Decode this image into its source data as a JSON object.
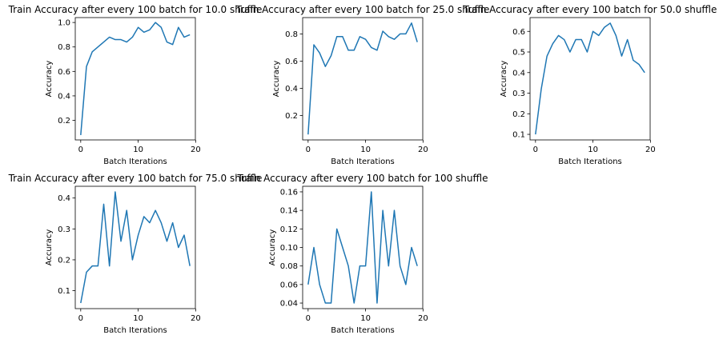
{
  "figure": {
    "line_color": "#1f77b4"
  },
  "chart_data": [
    {
      "type": "line",
      "title": "Train Accuracy after every 100 batch for 10.0 shuffle",
      "xlabel": "Batch Iterations",
      "ylabel": "Accuracy",
      "xlim": [
        -0.95,
        19.95
      ],
      "ylim": [
        0.04,
        1.04
      ],
      "xticks": [
        0,
        10,
        20
      ],
      "yticks": [
        0.2,
        0.4,
        0.6,
        0.8,
        1.0
      ],
      "ytick_labels": [
        "0.2",
        "0.4",
        "0.6",
        "0.8",
        "1.0"
      ],
      "series": [
        {
          "x": [
            0,
            1,
            2,
            3,
            4,
            5,
            6,
            7,
            8,
            9,
            10,
            11,
            12,
            13,
            14,
            15,
            16,
            17,
            18,
            19
          ],
          "y": [
            0.08,
            0.64,
            0.76,
            0.8,
            0.84,
            0.88,
            0.86,
            0.86,
            0.84,
            0.88,
            0.96,
            0.92,
            0.94,
            1.0,
            0.96,
            0.84,
            0.82,
            0.96,
            0.88,
            0.9
          ]
        }
      ]
    },
    {
      "type": "line",
      "title": "Train Accuracy after every 100 batch for 25.0 shuffle",
      "xlabel": "Batch Iterations",
      "ylabel": "Accuracy",
      "xlim": [
        -0.95,
        19.95
      ],
      "ylim": [
        0.02,
        0.92
      ],
      "xticks": [
        0,
        10,
        20
      ],
      "yticks": [
        0.2,
        0.4,
        0.6,
        0.8
      ],
      "ytick_labels": [
        "0.2",
        "0.4",
        "0.6",
        "0.8"
      ],
      "series": [
        {
          "x": [
            0,
            1,
            2,
            3,
            4,
            5,
            6,
            7,
            8,
            9,
            10,
            11,
            12,
            13,
            14,
            15,
            16,
            17,
            18,
            19
          ],
          "y": [
            0.06,
            0.72,
            0.66,
            0.56,
            0.64,
            0.78,
            0.78,
            0.68,
            0.68,
            0.78,
            0.76,
            0.7,
            0.68,
            0.82,
            0.78,
            0.76,
            0.8,
            0.8,
            0.88,
            0.74
          ]
        }
      ]
    },
    {
      "type": "line",
      "title": "Train Accuracy after every 100 batch for 50.0 shuffle",
      "xlabel": "Batch Iterations",
      "ylabel": "Accuracy",
      "xlim": [
        -0.95,
        19.95
      ],
      "ylim": [
        0.073,
        0.667
      ],
      "xticks": [
        0,
        10,
        20
      ],
      "yticks": [
        0.1,
        0.2,
        0.3,
        0.4,
        0.5,
        0.6
      ],
      "ytick_labels": [
        "0.1",
        "0.2",
        "0.3",
        "0.4",
        "0.5",
        "0.6"
      ],
      "series": [
        {
          "x": [
            0,
            1,
            2,
            3,
            4,
            5,
            6,
            7,
            8,
            9,
            10,
            11,
            12,
            13,
            14,
            15,
            16,
            17,
            18,
            19
          ],
          "y": [
            0.1,
            0.32,
            0.48,
            0.54,
            0.58,
            0.56,
            0.5,
            0.56,
            0.56,
            0.5,
            0.6,
            0.58,
            0.62,
            0.64,
            0.58,
            0.48,
            0.56,
            0.46,
            0.44,
            0.4
          ]
        }
      ]
    },
    {
      "type": "line",
      "title": "Train Accuracy after every 100 batch for 75.0 shuffle",
      "xlabel": "Batch Iterations",
      "ylabel": "Accuracy",
      "xlim": [
        -0.95,
        19.95
      ],
      "ylim": [
        0.042,
        0.438
      ],
      "xticks": [
        0,
        10,
        20
      ],
      "yticks": [
        0.1,
        0.2,
        0.3,
        0.4
      ],
      "ytick_labels": [
        "0.1",
        "0.2",
        "0.3",
        "0.4"
      ],
      "series": [
        {
          "x": [
            0,
            1,
            2,
            3,
            4,
            5,
            6,
            7,
            8,
            9,
            10,
            11,
            12,
            13,
            14,
            15,
            16,
            17,
            18,
            19
          ],
          "y": [
            0.06,
            0.16,
            0.18,
            0.18,
            0.38,
            0.18,
            0.42,
            0.26,
            0.36,
            0.2,
            0.28,
            0.34,
            0.32,
            0.36,
            0.32,
            0.26,
            0.32,
            0.24,
            0.28,
            0.18
          ]
        }
      ]
    },
    {
      "type": "line",
      "title": "Train Accuracy after every 100 batch for 100 shuffle",
      "xlabel": "Batch Iterations",
      "ylabel": "Accuracy",
      "xlim": [
        -0.95,
        19.95
      ],
      "ylim": [
        0.034,
        0.166
      ],
      "xticks": [
        0,
        10,
        20
      ],
      "yticks": [
        0.04,
        0.06,
        0.08,
        0.1,
        0.12,
        0.14,
        0.16
      ],
      "ytick_labels": [
        "0.04",
        "0.06",
        "0.08",
        "0.10",
        "0.12",
        "0.14",
        "0.16"
      ],
      "series": [
        {
          "x": [
            0,
            1,
            2,
            3,
            4,
            5,
            6,
            7,
            8,
            9,
            10,
            11,
            12,
            13,
            14,
            15,
            16,
            17,
            18,
            19
          ],
          "y": [
            0.06,
            0.1,
            0.06,
            0.04,
            0.04,
            0.12,
            0.1,
            0.08,
            0.04,
            0.08,
            0.08,
            0.16,
            0.04,
            0.14,
            0.08,
            0.14,
            0.08,
            0.06,
            0.1,
            0.08
          ]
        }
      ]
    }
  ]
}
